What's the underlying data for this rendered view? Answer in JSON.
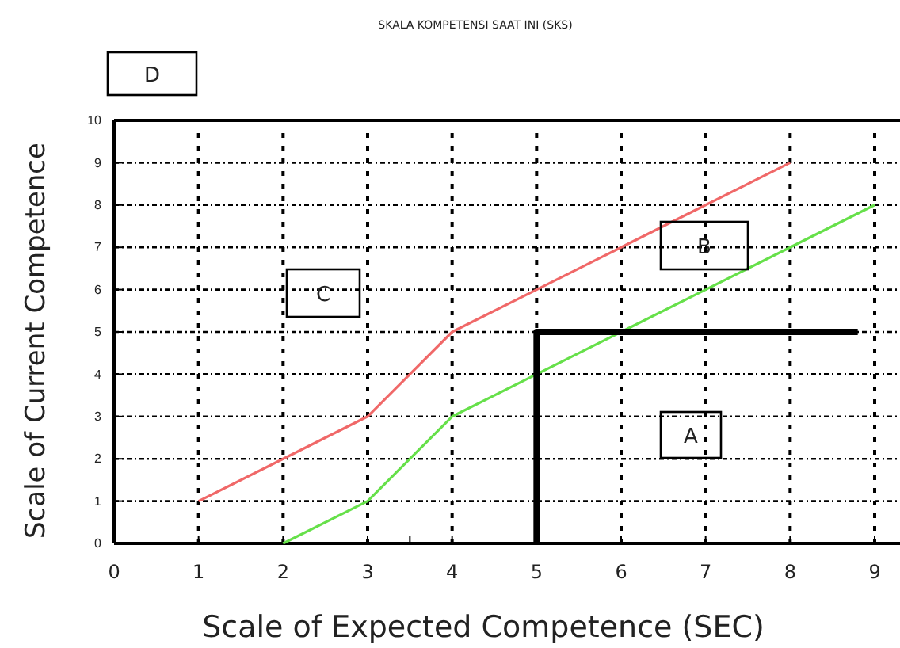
{
  "chart_data": {
    "type": "line",
    "title": "SKALA KOMPETENSI SAAT INI (SKS)",
    "xlabel": "Scale of Expected Competence (SEC)",
    "ylabel": "Scale of Current Competence",
    "xlim": [
      0,
      9.3
    ],
    "ylim": [
      0,
      10
    ],
    "xticks": [
      0,
      1,
      2,
      3,
      {
        "value": 3.5,
        "label": null
      },
      4,
      5,
      6,
      7,
      8,
      9
    ],
    "yticks": [
      0,
      1,
      2,
      3,
      4,
      5,
      6,
      7,
      8,
      9,
      10
    ],
    "grid": true,
    "line_style": "solid",
    "marker": "none",
    "series": [
      {
        "color": "#f06868",
        "x": [
          1,
          2,
          3,
          4,
          5,
          6,
          7,
          8
        ],
        "values": [
          1,
          2,
          3,
          5,
          6,
          7,
          8,
          9
        ]
      },
      {
        "color": "#66e04a",
        "x": [
          2,
          3,
          4,
          5,
          6,
          7,
          8,
          9
        ],
        "values": [
          0,
          1,
          3,
          4,
          5,
          6,
          7,
          8
        ]
      },
      {
        "color": "#000000",
        "x": [
          5,
          5,
          8.8
        ],
        "values": [
          0,
          5,
          5
        ]
      }
    ],
    "annotations": [
      "A",
      "B",
      "C",
      "D"
    ]
  }
}
